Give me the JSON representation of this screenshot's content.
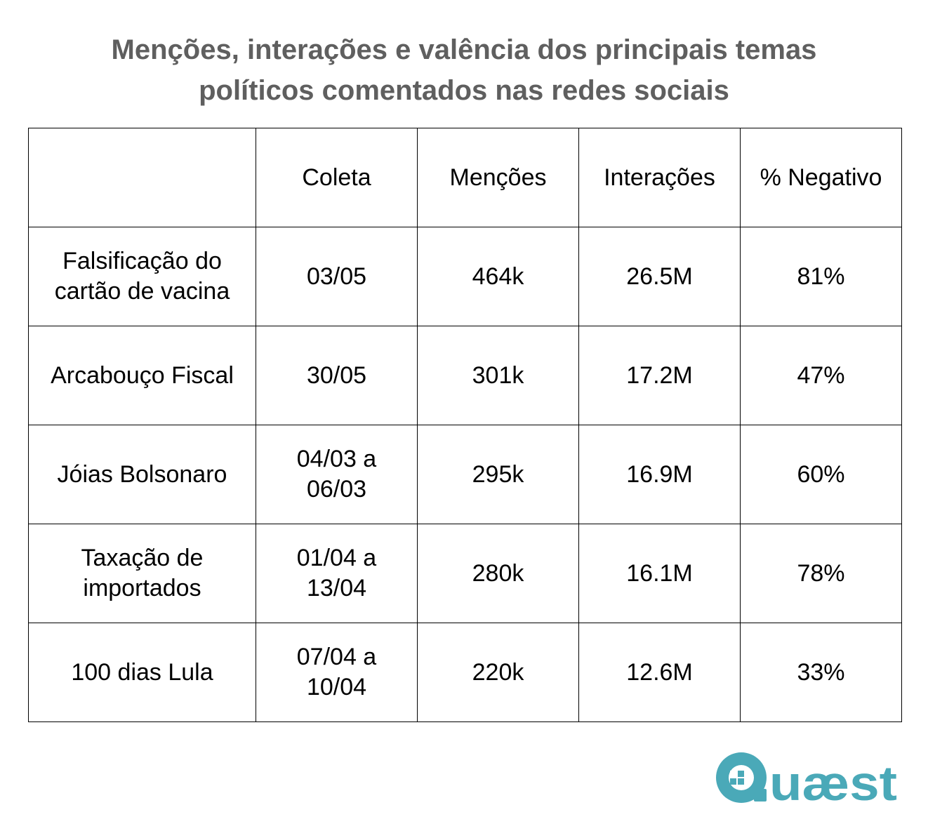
{
  "title": {
    "line1": "Menções, interações e valência dos principais temas",
    "line2": "políticos comentados nas redes sociais"
  },
  "table": {
    "headers": [
      "",
      "Coleta",
      "Menções",
      "Interações",
      "% Negativo"
    ],
    "rows": [
      {
        "topic": "Falsificação do cartão de vacina",
        "coleta": "03/05",
        "mencoes": "464k",
        "interacoes": "26.5M",
        "negativo": "81%"
      },
      {
        "topic": "Arcabouço Fiscal",
        "coleta": "30/05",
        "mencoes": "301k",
        "interacoes": "17.2M",
        "negativo": "47%"
      },
      {
        "topic": "Jóias Bolsonaro",
        "coleta": "04/03 a 06/03",
        "mencoes": "295k",
        "interacoes": "16.9M",
        "negativo": "60%"
      },
      {
        "topic": "Taxação de importados",
        "coleta": "01/04 a 13/04",
        "mencoes": "280k",
        "interacoes": "16.1M",
        "negativo": "78%"
      },
      {
        "topic": "100 dias Lula",
        "coleta": "07/04 a 10/04",
        "mencoes": "220k",
        "interacoes": "12.6M",
        "negativo": "33%"
      }
    ]
  },
  "logo": {
    "text": "Quæst",
    "color": "#4aa9b8"
  }
}
